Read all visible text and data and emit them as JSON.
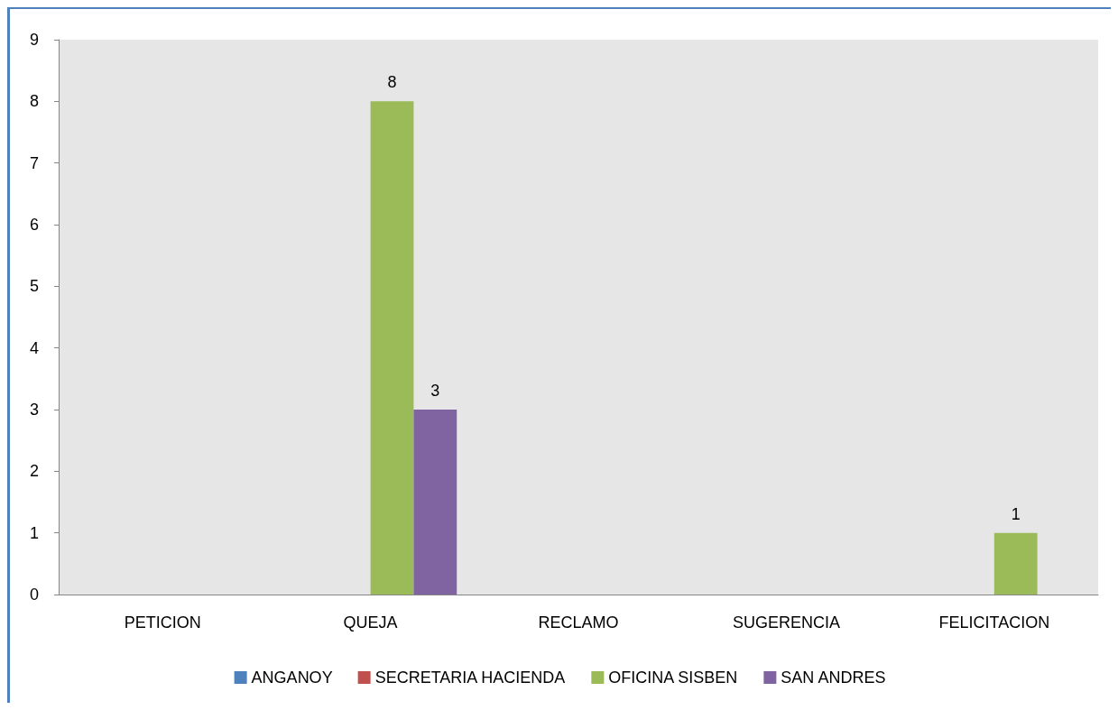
{
  "chart_data": {
    "type": "bar",
    "categories": [
      "PETICION",
      "QUEJA",
      "RECLAMO",
      "SUGERENCIA",
      "FELICITACION"
    ],
    "series": [
      {
        "name": "ANGANOY",
        "color": "#4f81bd",
        "values": [
          0,
          0,
          0,
          0,
          0
        ],
        "value_labels": [
          null,
          null,
          null,
          null,
          null
        ]
      },
      {
        "name": "SECRETARIA HACIENDA",
        "color": "#c0504d",
        "values": [
          0,
          0,
          0,
          0,
          0
        ],
        "value_labels": [
          null,
          null,
          null,
          null,
          null
        ]
      },
      {
        "name": "OFICINA SISBEN",
        "color": "#9bbb59",
        "values": [
          0,
          8,
          0,
          0,
          1
        ],
        "value_labels": [
          null,
          "8",
          null,
          null,
          "1"
        ]
      },
      {
        "name": "SAN ANDRES",
        "color": "#8064a2",
        "values": [
          0,
          3,
          0,
          0,
          0
        ],
        "value_labels": [
          null,
          "3",
          null,
          null,
          null
        ]
      }
    ],
    "ylim": [
      0,
      9
    ],
    "yticks": [
      0,
      1,
      2,
      3,
      4,
      5,
      6,
      7,
      8,
      9
    ],
    "grid": false,
    "legend": "bottom"
  }
}
